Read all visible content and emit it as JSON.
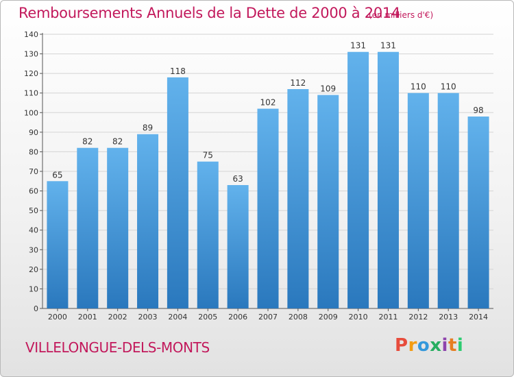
{
  "title": "Remboursements Annuels de la Dette de 2000 à 2014",
  "subtitle": "(en milliers d'€)",
  "city": "VILLELONGUE-DELS-MONTS",
  "logo": "Proxiti",
  "colors": {
    "title": "#c2185b",
    "bar_top": "#62b2ec",
    "bar_bottom": "#2a78bd",
    "grid": "#d4d4d4",
    "logo_letters": [
      "#e74c3c",
      "#f39c12",
      "#3498db",
      "#27ae60",
      "#8e44ad",
      "#e67e22",
      "#2ecc71"
    ]
  },
  "chart_data": {
    "type": "bar",
    "categories": [
      "2000",
      "2001",
      "2002",
      "2003",
      "2004",
      "2005",
      "2006",
      "2007",
      "2008",
      "2009",
      "2010",
      "2011",
      "2012",
      "2013",
      "2014"
    ],
    "values": [
      65,
      82,
      82,
      89,
      118,
      75,
      63,
      102,
      112,
      109,
      131,
      131,
      110,
      110,
      98
    ],
    "title": "Remboursements Annuels de la Dette de 2000 à 2014",
    "ylim": [
      0,
      140
    ],
    "yticks": [
      0,
      10,
      20,
      30,
      40,
      50,
      60,
      70,
      80,
      90,
      100,
      110,
      120,
      130,
      140
    ],
    "grid": true,
    "data_labels": true
  }
}
